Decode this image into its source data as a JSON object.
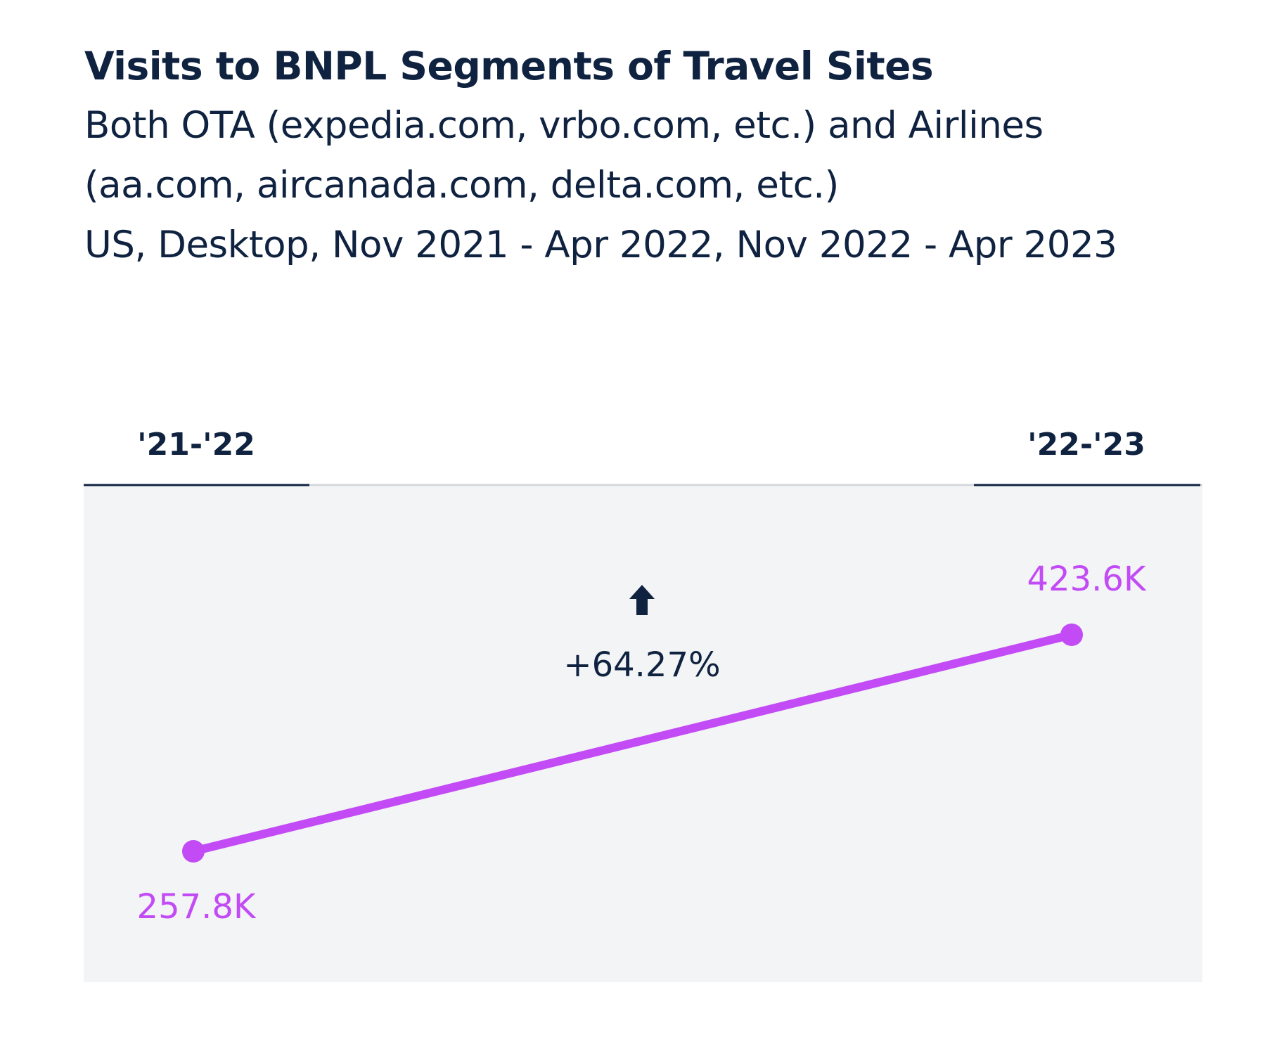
{
  "chart_data": {
    "type": "line",
    "title": "Visits to BNPL Segments of Travel Sites",
    "subtitle": [
      "Both OTA (expedia.com, vrbo.com, etc.) and Airlines (aa.com, aircanada.com, delta.com, etc.)",
      "US, Desktop, Nov 2021 - Apr 2022, Nov 2022 - Apr 2023"
    ],
    "categories": [
      "'21-'22",
      "'22-'23"
    ],
    "series": [
      {
        "color": "#c24bf5",
        "values": [
          257.8,
          423.6
        ],
        "value_labels": [
          "257.8K",
          "423.6K"
        ]
      }
    ],
    "annotation": "+64.27%"
  }
}
